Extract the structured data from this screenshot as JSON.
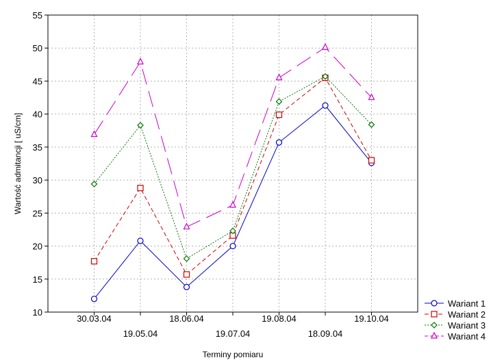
{
  "chart_data": {
    "type": "line",
    "title": "",
    "xlabel": "Terminy pomiaru",
    "ylabel": "Wartość admitancji [ uS/cm]",
    "categories": [
      "30.03.04",
      "19.05.04",
      "18.06.04",
      "19.07.04",
      "19.08.04",
      "18.09.04",
      "19.10.04"
    ],
    "ylim": [
      10,
      55
    ],
    "yticks": [
      10,
      15,
      20,
      25,
      30,
      35,
      40,
      45,
      50,
      55
    ],
    "grid": true,
    "legend_position": "bottom-right",
    "series": [
      {
        "name": "Wariant 1",
        "values": [
          12.0,
          20.8,
          13.8,
          20.0,
          35.7,
          41.3,
          32.6
        ],
        "color": "#0000cc",
        "marker": "circle",
        "line_style": "solid"
      },
      {
        "name": "Wariant 2",
        "values": [
          17.7,
          28.8,
          15.7,
          21.6,
          39.9,
          45.5,
          33.0
        ],
        "color": "#cc0000",
        "marker": "square",
        "line_style": "dashed"
      },
      {
        "name": "Wariant 3",
        "values": [
          29.4,
          38.3,
          18.1,
          22.3,
          41.9,
          45.7,
          38.4
        ],
        "color": "#007700",
        "marker": "diamond",
        "line_style": "dotted"
      },
      {
        "name": "Wariant 4",
        "values": [
          36.9,
          47.9,
          22.9,
          26.2,
          45.5,
          50.1,
          42.5
        ],
        "color": "#cc00cc",
        "marker": "triangle",
        "line_style": "long-dash"
      }
    ]
  }
}
